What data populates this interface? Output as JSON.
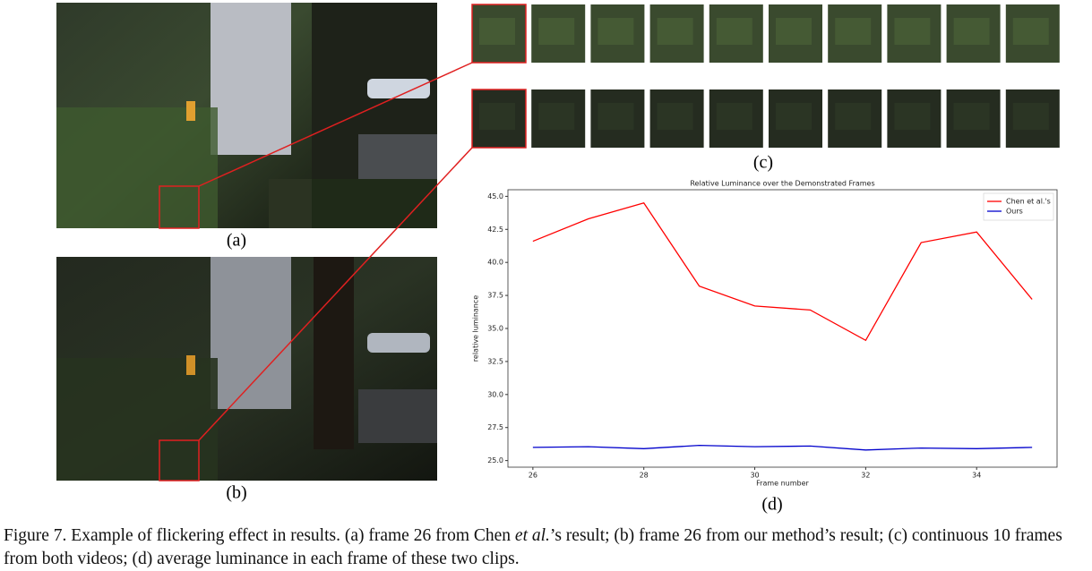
{
  "panels": {
    "a": "(a)",
    "b": "(b)",
    "c": "(c)",
    "d": "(d)"
  },
  "caption": {
    "start": "Figure 7. Example of flickering effect in results. (a) frame 26 from Chen ",
    "italic": "et al.",
    "end": "’s result; (b) frame 26 from our method’s result; (c) continuous 10 frames from both videos; (d) average luminance in each frame of these two clips."
  },
  "chart_data": {
    "type": "line",
    "title": "Relative Luminance over the Demonstrated Frames",
    "x_label": "Frame number",
    "y_label": "relative luminance",
    "x": [
      26,
      27,
      28,
      29,
      30,
      31,
      32,
      33,
      34,
      35
    ],
    "series": [
      {
        "name": "Chen et al.'s",
        "color": "#ff0000",
        "values": [
          41.6,
          43.3,
          44.5,
          38.2,
          36.7,
          36.4,
          34.1,
          41.5,
          42.3,
          37.2
        ]
      },
      {
        "name": "Ours",
        "color": "#0000cc",
        "values": [
          26.0,
          26.05,
          25.9,
          26.15,
          26.05,
          26.1,
          25.8,
          25.95,
          25.9,
          26.0
        ]
      }
    ],
    "xlim": [
      25.55,
      35.45
    ],
    "ylim": [
      24.5,
      45.5
    ],
    "xticks": [
      26,
      28,
      30,
      32,
      34
    ],
    "yticks": [
      {
        "value": 25,
        "label": "25.0"
      },
      27.5,
      {
        "value": 30,
        "label": "30.0"
      },
      32.5,
      {
        "value": 35,
        "label": "35.0"
      },
      37.5,
      {
        "value": 40,
        "label": "40.0"
      },
      42.5,
      {
        "value": 45,
        "label": "45.0"
      }
    ],
    "legend": "upper right",
    "grid": false
  }
}
